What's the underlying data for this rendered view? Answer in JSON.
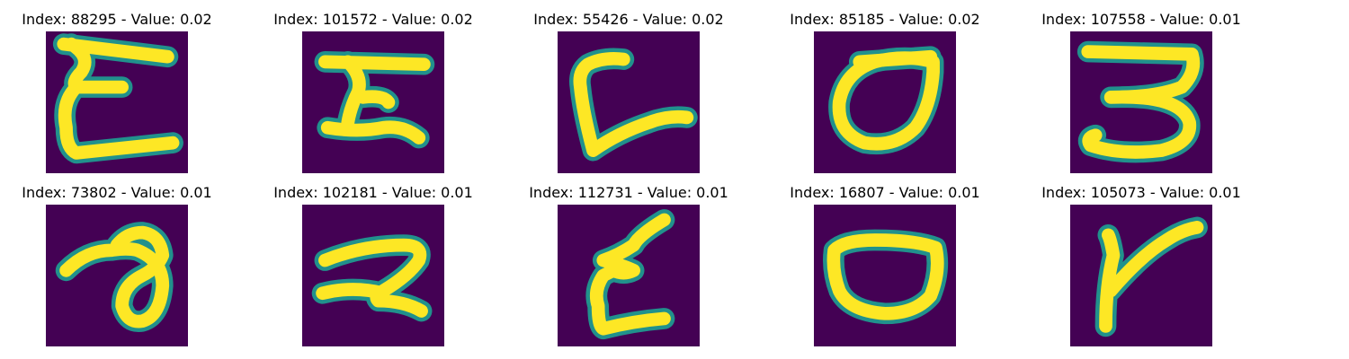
{
  "colors": {
    "background": "#440154",
    "stroke_core": "#fde725",
    "stroke_edge": "#21918c"
  },
  "panels": [
    {
      "title": "Index: 88295 - Value: 0.02"
    },
    {
      "title": "Index: 101572 - Value: 0.02"
    },
    {
      "title": "Index: 55426 - Value: 0.02"
    },
    {
      "title": "Index: 85185 - Value: 0.02"
    },
    {
      "title": "Index: 107558 - Value: 0.01"
    },
    {
      "title": "Index: 73802 - Value: 0.01"
    },
    {
      "title": "Index: 102181 - Value: 0.01"
    },
    {
      "title": "Index: 112731 - Value: 0.01"
    },
    {
      "title": "Index: 16807 - Value: 0.01"
    },
    {
      "title": "Index: 105073 - Value: 0.01"
    }
  ]
}
